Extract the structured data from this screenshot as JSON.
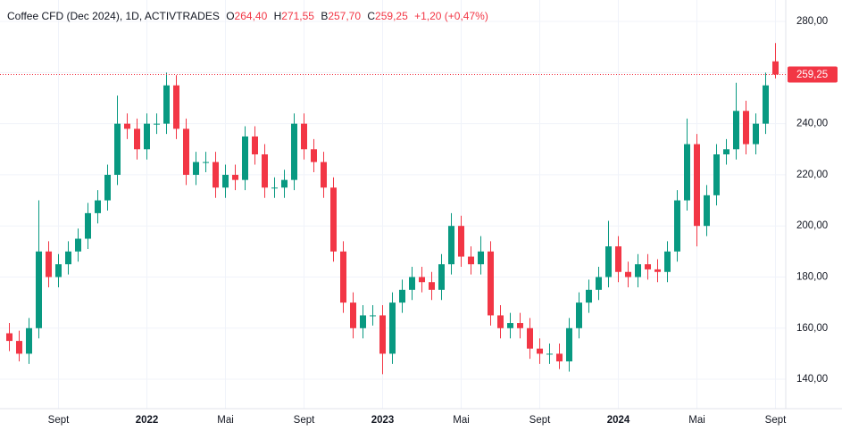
{
  "header": {
    "title": "Coffee CFD (Dec 2024), 1D, ACTIVTRADES",
    "open_label": "O",
    "open": "264,40",
    "high_label": "H",
    "high": "271,55",
    "low_label": "B",
    "low": "257,70",
    "close_label": "C",
    "close": "259,25",
    "change": "+1,20 (+0,47%)"
  },
  "chart_data": {
    "type": "candlestick",
    "up_color": "#089981",
    "down_color": "#f23645",
    "grid": true,
    "ylim": [
      128.5,
      288.4
    ],
    "yticks": [
      {
        "value": 140,
        "label": "140,00"
      },
      {
        "value": 160,
        "label": "160,00"
      },
      {
        "value": 180,
        "label": "180,00"
      },
      {
        "value": 200,
        "label": "200,00"
      },
      {
        "value": 220,
        "label": "220,00"
      },
      {
        "value": 240,
        "label": "240,00"
      },
      {
        "value": 260,
        "label": "260,00"
      },
      {
        "value": 280,
        "label": "280,00"
      }
    ],
    "last_price": {
      "value": 259.25,
      "label": "259,25",
      "color": "#f23645"
    },
    "categories": [
      null,
      null,
      null,
      null,
      null,
      "Sept",
      null,
      null,
      null,
      null,
      null,
      null,
      null,
      null,
      "2022",
      null,
      null,
      null,
      null,
      null,
      null,
      null,
      "Mai",
      null,
      null,
      null,
      null,
      null,
      null,
      null,
      "Sept",
      null,
      null,
      null,
      null,
      null,
      null,
      null,
      "2023",
      null,
      null,
      null,
      null,
      null,
      null,
      null,
      "Mai",
      null,
      null,
      null,
      null,
      null,
      null,
      null,
      "Sept",
      null,
      null,
      null,
      null,
      null,
      null,
      null,
      "2024",
      null,
      null,
      null,
      null,
      null,
      null,
      null,
      "Mai",
      null,
      null,
      null,
      null,
      null,
      null,
      null,
      "Sept"
    ],
    "open": [
      158,
      155,
      150,
      160,
      190,
      180,
      185,
      190,
      195,
      205,
      210,
      220,
      240,
      238,
      230,
      240,
      240,
      255,
      238,
      220,
      225,
      225,
      215,
      220,
      218,
      235,
      228,
      215,
      215,
      218,
      240,
      230,
      225,
      215,
      190,
      170,
      160,
      165,
      165,
      150,
      170,
      175,
      180,
      178,
      175,
      185,
      200,
      188,
      185,
      190,
      165,
      160,
      162,
      160,
      152,
      150,
      150,
      147,
      160,
      170,
      175,
      180,
      192,
      182,
      180,
      185,
      183,
      182,
      190,
      210,
      232,
      200,
      212,
      228,
      230,
      245,
      232,
      240,
      264.4
    ],
    "high": [
      162,
      159,
      164,
      210,
      194,
      189,
      194,
      199,
      209,
      214,
      224,
      251,
      244,
      242,
      244,
      244,
      260,
      259,
      242,
      229,
      229,
      229,
      224,
      224,
      239,
      239,
      232,
      219,
      222,
      244,
      244,
      234,
      229,
      219,
      194,
      174,
      169,
      169,
      169,
      174,
      179,
      184,
      184,
      182,
      189,
      205,
      204,
      192,
      196,
      194,
      169,
      166,
      166,
      164,
      156,
      154,
      154,
      164,
      174,
      179,
      184,
      202,
      196,
      186,
      189,
      189,
      187,
      194,
      214,
      242,
      236,
      216,
      232,
      234,
      256,
      249,
      244,
      260,
      271.55
    ],
    "low": [
      151,
      147,
      146,
      156,
      176,
      176,
      181,
      186,
      191,
      201,
      206,
      216,
      234,
      226,
      226,
      236,
      236,
      234,
      216,
      216,
      221,
      211,
      211,
      214,
      214,
      224,
      211,
      211,
      211,
      214,
      226,
      221,
      211,
      186,
      166,
      156,
      156,
      161,
      142,
      146,
      166,
      171,
      174,
      171,
      171,
      181,
      184,
      181,
      181,
      161,
      156,
      156,
      156,
      148,
      146,
      146,
      144,
      143,
      156,
      166,
      171,
      176,
      178,
      176,
      176,
      179,
      178,
      178,
      186,
      206,
      192,
      196,
      208,
      224,
      226,
      228,
      228,
      236,
      257.7
    ],
    "close": [
      155,
      150,
      160,
      190,
      180,
      185,
      190,
      195,
      205,
      210,
      220,
      240,
      238,
      230,
      240,
      240,
      255,
      238,
      220,
      225,
      225,
      215,
      220,
      218,
      235,
      228,
      215,
      215,
      218,
      240,
      230,
      225,
      215,
      190,
      170,
      160,
      165,
      165,
      150,
      170,
      175,
      180,
      178,
      175,
      185,
      200,
      188,
      185,
      190,
      165,
      160,
      162,
      160,
      152,
      150,
      150,
      147,
      160,
      170,
      175,
      180,
      192,
      182,
      180,
      185,
      183,
      182,
      190,
      210,
      232,
      200,
      212,
      228,
      230,
      245,
      232,
      240,
      255,
      259.25
    ]
  }
}
